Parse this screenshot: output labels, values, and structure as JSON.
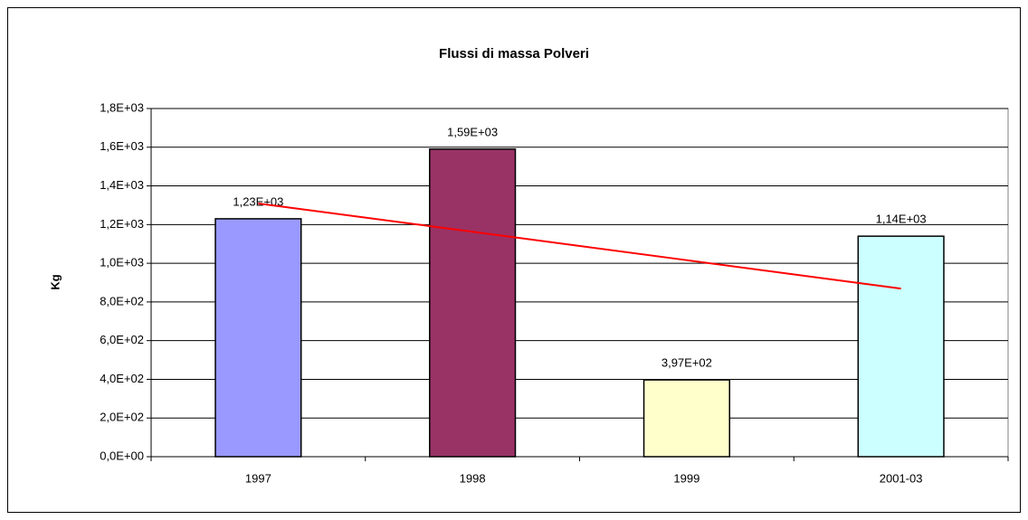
{
  "chart_data": {
    "type": "bar",
    "title": "Flussi di massa Polveri",
    "y_label": "Kg",
    "categories": [
      "1997",
      "1998",
      "1999",
      "2001-03"
    ],
    "values": [
      1230,
      1590,
      397,
      1140
    ],
    "value_labels": [
      "1,23E+03",
      "1,59E+03",
      "3,97E+02",
      "1,14E+03"
    ],
    "colors": [
      "#9999ff",
      "#993366",
      "#ffffcc",
      "#ccffff"
    ],
    "trendline": {
      "color": "#ff0000",
      "values": [
        1309,
        1163,
        1016,
        869
      ]
    },
    "ylim": [
      0,
      1800
    ],
    "yticks": [
      {
        "value": 0,
        "label": "0,0E+00"
      },
      {
        "value": 200,
        "label": "2,0E+02"
      },
      {
        "value": 400,
        "label": "4,0E+02"
      },
      {
        "value": 600,
        "label": "6,0E+02"
      },
      {
        "value": 800,
        "label": "8,0E+02"
      },
      {
        "value": 1000,
        "label": "1,0E+03"
      },
      {
        "value": 1200,
        "label": "1,2E+03"
      },
      {
        "value": 1400,
        "label": "1,4E+03"
      },
      {
        "value": 1600,
        "label": "1,6E+03"
      },
      {
        "value": 1800,
        "label": "1,8E+03"
      }
    ],
    "grid": true
  }
}
